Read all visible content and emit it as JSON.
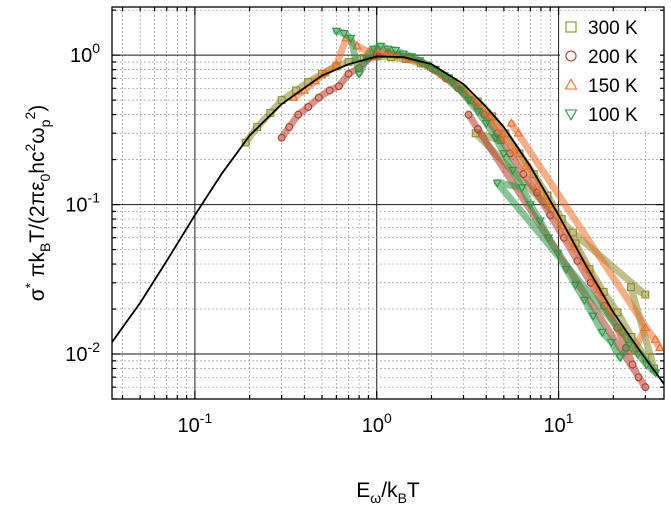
{
  "chart_data": {
    "type": "scatter",
    "title": "",
    "xlabel": {
      "base": "E",
      "sub1": "ω",
      "mid": "/k",
      "sub2": "B",
      "tail": "T"
    },
    "ylabel": {
      "p1": "σ",
      "sup1": "*",
      "p2": " πk",
      "sub1": "B",
      "p3": "T/(2πε",
      "sub2": "0",
      "p4": "hc",
      "sup2": "2",
      "p5": "ω",
      "sub3": "p",
      "sup3": "2",
      "p6": ")"
    },
    "x_scale": "log",
    "y_scale": "log",
    "xlim": [
      0.035,
      38
    ],
    "ylim": [
      0.005,
      2.1
    ],
    "grid": true,
    "legend_position": "top-right",
    "x_ticks": [
      {
        "value": 0.1,
        "base": "10",
        "exp": "-1"
      },
      {
        "value": 1,
        "base": "10",
        "exp": "0"
      },
      {
        "value": 10,
        "base": "10",
        "exp": "1"
      }
    ],
    "y_ticks": [
      {
        "value": 0.01,
        "base": "10",
        "exp": "-2"
      },
      {
        "value": 0.1,
        "base": "10",
        "exp": "-1"
      },
      {
        "value": 1,
        "base": "10",
        "exp": "0"
      }
    ],
    "series": [
      {
        "name": "300 K",
        "marker": "square",
        "color": "#8b8b2e",
        "x": [
          0.19,
          0.22,
          0.26,
          0.3,
          0.36,
          0.42,
          0.5,
          0.6,
          0.7,
          0.85,
          1.0,
          1.2,
          1.45,
          1.75,
          2.1,
          2.5,
          3.0,
          3.6,
          4.3,
          5.1,
          6.1,
          7.3,
          8.7,
          10.4,
          12.4,
          14.8,
          17.7,
          21.1,
          25.2,
          30.0,
          33.5,
          25.0,
          30.0,
          12.0,
          3.5,
          4.8
        ],
        "y": [
          0.26,
          0.33,
          0.41,
          0.5,
          0.58,
          0.66,
          0.75,
          0.84,
          0.9,
          0.96,
          0.98,
          0.97,
          0.94,
          0.88,
          0.8,
          0.7,
          0.59,
          0.49,
          0.39,
          0.3,
          0.22,
          0.16,
          0.115,
          0.08,
          0.055,
          0.037,
          0.026,
          0.019,
          0.013,
          0.0095,
          0.008,
          0.028,
          0.025,
          0.065,
          0.3,
          0.27
        ]
      },
      {
        "name": "200 K",
        "marker": "circle",
        "color": "#b03c2a",
        "x": [
          0.3,
          0.33,
          0.37,
          0.42,
          0.48,
          0.55,
          0.62,
          0.7,
          0.8,
          0.9,
          1.0,
          1.15,
          1.3,
          1.5,
          1.75,
          2.0,
          2.4,
          2.8,
          3.3,
          3.9,
          4.6,
          5.4,
          6.4,
          7.6,
          9.0,
          10.7,
          12.7,
          15.0,
          17.8,
          21.0,
          23.5,
          25.5,
          27.5,
          30.0,
          3.2,
          3.6
        ],
        "y": [
          0.28,
          0.33,
          0.4,
          0.45,
          0.52,
          0.58,
          0.62,
          0.75,
          0.82,
          0.95,
          1.0,
          1.02,
          1.0,
          0.97,
          0.9,
          0.82,
          0.7,
          0.6,
          0.5,
          0.4,
          0.3,
          0.22,
          0.16,
          0.12,
          0.085,
          0.06,
          0.042,
          0.03,
          0.021,
          0.015,
          0.011,
          0.0085,
          0.007,
          0.006,
          0.4,
          0.32
        ]
      },
      {
        "name": "150 K",
        "marker": "triangle-up",
        "color": "#e8712b",
        "x": [
          0.35,
          0.4,
          0.46,
          0.52,
          0.6,
          0.68,
          0.78,
          0.9,
          1.0,
          1.15,
          1.3,
          1.5,
          1.75,
          2.0,
          2.3,
          2.7,
          3.1,
          3.6,
          4.2,
          4.9,
          5.7,
          6.6,
          7.7,
          9.0,
          10.5,
          12.2,
          14.2,
          16.6,
          19.3,
          22.5,
          26.0,
          30.0,
          34.0,
          36.0,
          5.5,
          6.0
        ],
        "y": [
          0.52,
          0.58,
          0.67,
          0.76,
          0.86,
          1.3,
          1.15,
          1.05,
          1.1,
          1.05,
          1.0,
          0.95,
          0.9,
          0.83,
          0.74,
          0.65,
          0.55,
          0.46,
          0.38,
          0.3,
          0.23,
          0.18,
          0.135,
          0.1,
          0.072,
          0.052,
          0.038,
          0.027,
          0.019,
          0.014,
          0.0105,
          0.015,
          0.0125,
          0.011,
          0.35,
          0.3
        ]
      },
      {
        "name": "100 K",
        "marker": "triangle-down",
        "color": "#2e9346",
        "x": [
          0.6,
          0.66,
          0.72,
          0.8,
          0.88,
          0.96,
          1.05,
          1.15,
          1.27,
          1.4,
          1.55,
          1.72,
          1.9,
          2.1,
          2.35,
          2.6,
          2.9,
          3.2,
          3.6,
          4.0,
          4.5,
          5.0,
          5.6,
          6.3,
          7.0,
          7.9,
          8.8,
          9.9,
          11.0,
          12.4,
          13.9,
          15.5,
          17.4,
          19.5,
          21.8,
          24.4,
          27.3,
          30.5,
          34.2,
          4.6,
          6.3
        ],
        "y": [
          1.45,
          1.4,
          1.3,
          0.75,
          0.95,
          1.1,
          1.15,
          1.1,
          1.08,
          1.02,
          0.98,
          0.92,
          0.86,
          0.8,
          0.73,
          0.66,
          0.58,
          0.5,
          0.42,
          0.35,
          0.28,
          0.22,
          0.17,
          0.13,
          0.1,
          0.078,
          0.06,
          0.047,
          0.037,
          0.029,
          0.023,
          0.018,
          0.014,
          0.012,
          0.0095,
          0.0115,
          0.01,
          0.0085,
          0.0075,
          0.14,
          0.13
        ]
      }
    ],
    "model_curve": {
      "color": "#000000",
      "x": [
        0.035,
        0.05,
        0.07,
        0.1,
        0.14,
        0.2,
        0.3,
        0.5,
        0.7,
        1.0,
        1.4,
        2.0,
        3.0,
        4.0,
        5.0,
        7.0,
        10.0,
        14.0,
        20.0,
        28.0,
        38.0
      ],
      "y": [
        0.012,
        0.022,
        0.042,
        0.085,
        0.16,
        0.29,
        0.47,
        0.73,
        0.87,
        0.98,
        0.97,
        0.87,
        0.64,
        0.45,
        0.33,
        0.18,
        0.085,
        0.04,
        0.019,
        0.0105,
        0.0063
      ]
    }
  }
}
